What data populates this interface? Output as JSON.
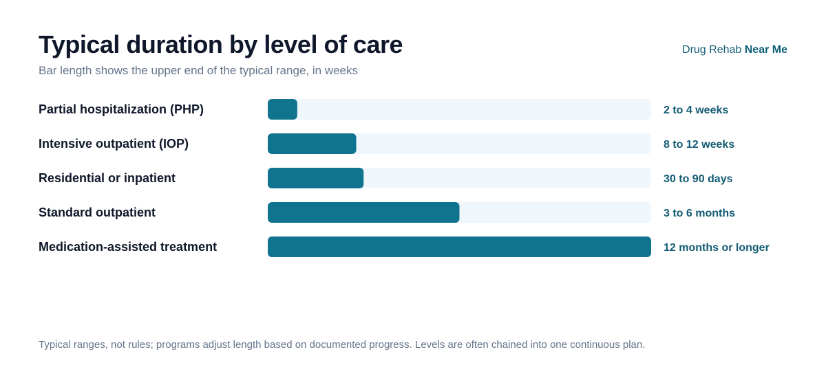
{
  "brand": {
    "prefix": "Drug Rehab",
    "strong": "Near Me"
  },
  "colors": {
    "bar": "#10748f",
    "track": "#eff6fc",
    "value_text": "#125b73",
    "label_text": "#0f172a"
  },
  "chart_data": {
    "type": "bar",
    "orientation": "horizontal",
    "title": "Typical duration by level of care",
    "subtitle": "Bar length shows the upper end of the typical range, in weeks",
    "categories": [
      "Partial hospitalization (PHP)",
      "Intensive outpatient (IOP)",
      "Residential or inpatient",
      "Standard outpatient",
      "Medication-assisted treatment"
    ],
    "values": [
      4,
      12,
      13,
      26,
      52
    ],
    "value_labels": [
      "2 to 4 weeks",
      "8 to 12 weeks",
      "30 to 90 days",
      "3 to 6 months",
      "12 months or longer"
    ],
    "xlim": [
      0,
      52
    ],
    "grid": false,
    "legend": "none"
  },
  "footnote": "Typical ranges, not rules; programs adjust length based on documented progress. Levels are often chained into one continuous plan."
}
